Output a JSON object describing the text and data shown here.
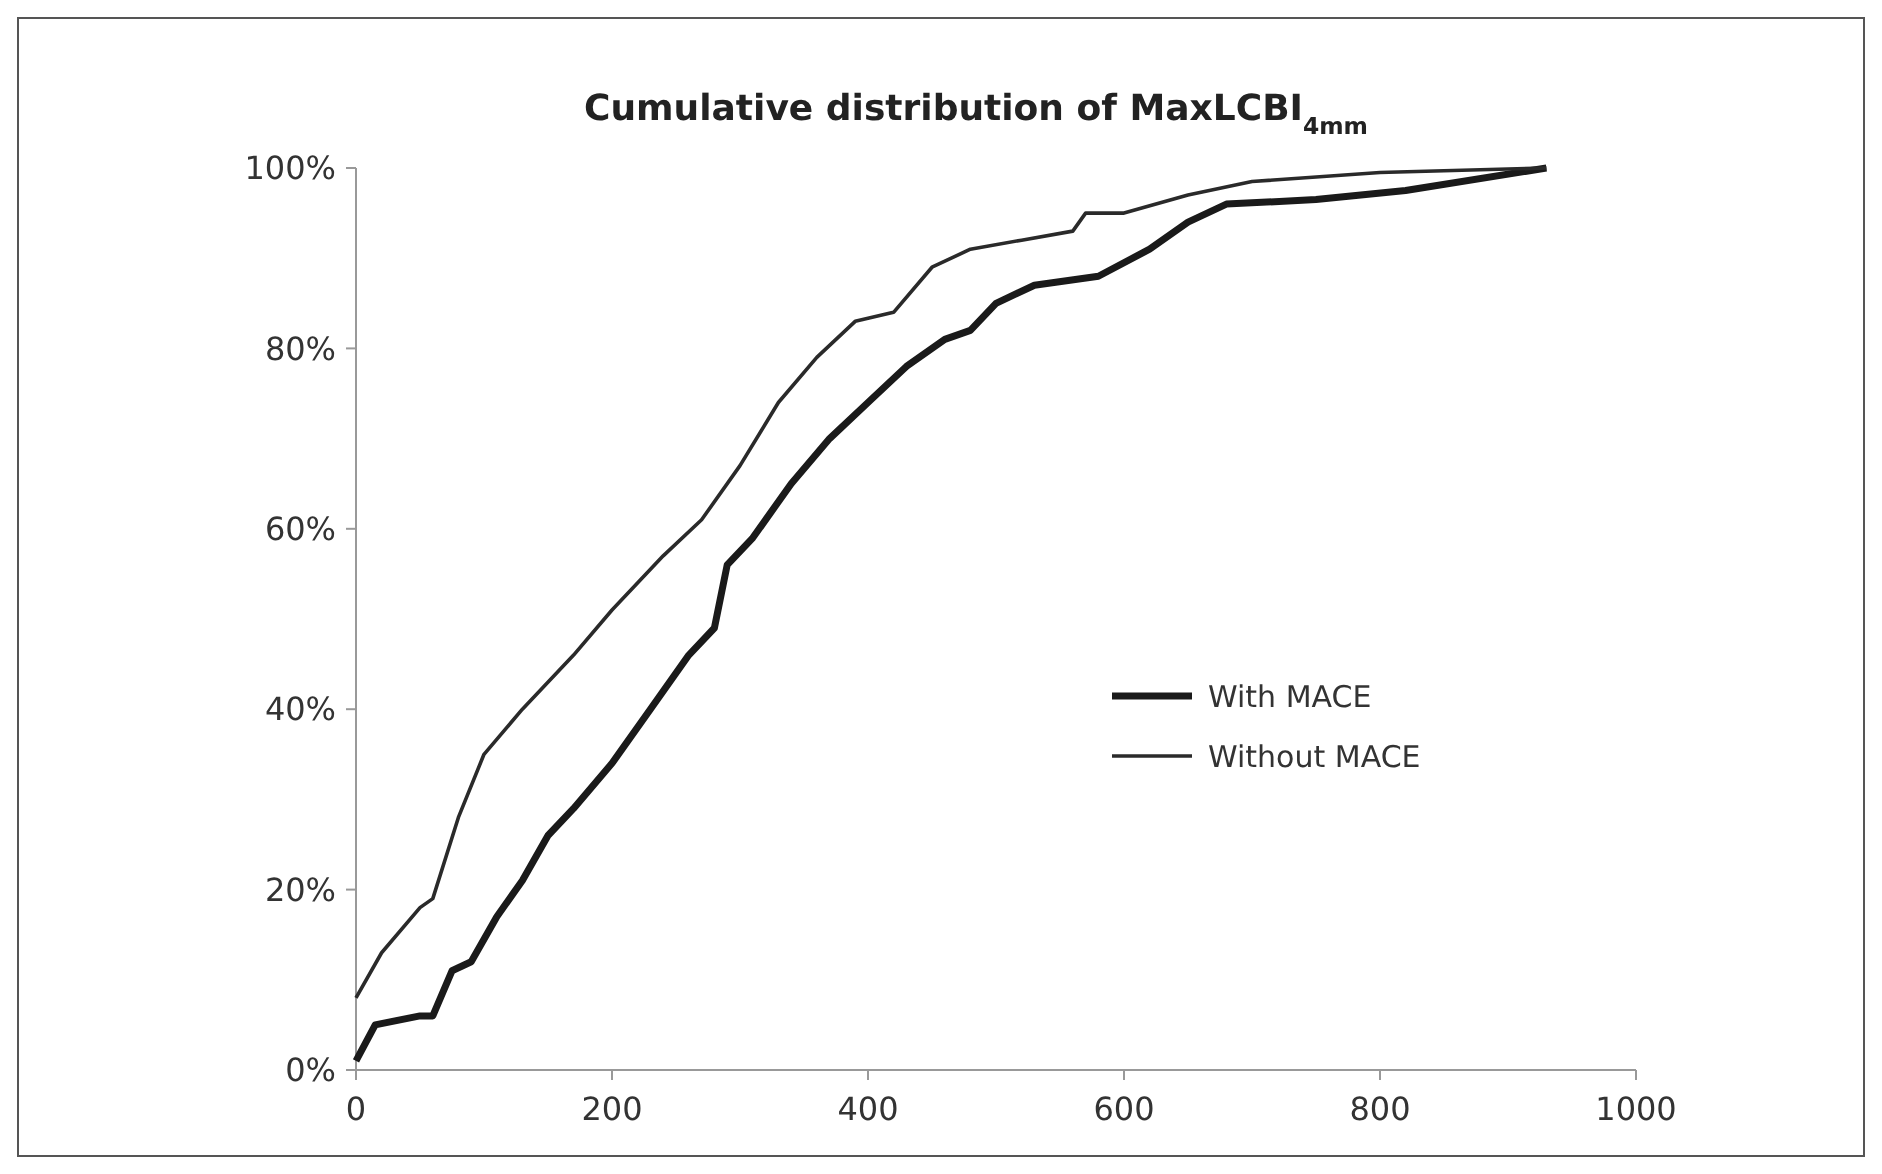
{
  "chart_data": {
    "type": "line",
    "title": "Cumulative distribution of MaxLCBI$_{4mm}$",
    "xlim": [
      0,
      1000
    ],
    "xticks": [
      0,
      200,
      400,
      600,
      800,
      1000
    ],
    "ylim": [
      0,
      100
    ],
    "yticks": [
      {
        "value": 0,
        "label": "0%"
      },
      {
        "value": 20,
        "label": "20%"
      },
      {
        "value": 40,
        "label": "40%"
      },
      {
        "value": 60,
        "label": "60%"
      },
      {
        "value": 80,
        "label": "80%"
      },
      {
        "value": 100,
        "label": "100%"
      }
    ],
    "grid": false,
    "legend": "right",
    "marker": "none",
    "line_style": "solid",
    "series": [
      {
        "name": "With MACE",
        "color": "#1a1a1a",
        "x": [
          0,
          15,
          50,
          60,
          75,
          90,
          110,
          130,
          150,
          170,
          200,
          230,
          260,
          280,
          290,
          310,
          340,
          370,
          400,
          430,
          460,
          480,
          500,
          530,
          580,
          620,
          650,
          680,
          750,
          820,
          930
        ],
        "values": [
          1,
          5,
          6,
          6,
          11,
          12,
          17,
          21,
          26,
          29,
          34,
          40,
          46,
          49,
          56,
          59,
          65,
          70,
          74,
          78,
          81,
          82,
          85,
          87,
          88,
          91,
          94,
          96,
          96.5,
          97.5,
          100
        ]
      },
      {
        "name": "Without MACE",
        "color": "#2a2a2a",
        "x": [
          0,
          20,
          50,
          60,
          80,
          100,
          130,
          170,
          200,
          240,
          270,
          300,
          330,
          360,
          390,
          420,
          450,
          480,
          520,
          560,
          570,
          600,
          650,
          700,
          800,
          930
        ],
        "values": [
          8,
          13,
          18,
          19,
          28,
          35,
          40,
          46,
          51,
          57,
          61,
          67,
          74,
          79,
          83,
          84,
          89,
          91,
          92,
          93,
          95,
          95,
          97,
          98.5,
          99.5,
          100
        ]
      }
    ]
  }
}
